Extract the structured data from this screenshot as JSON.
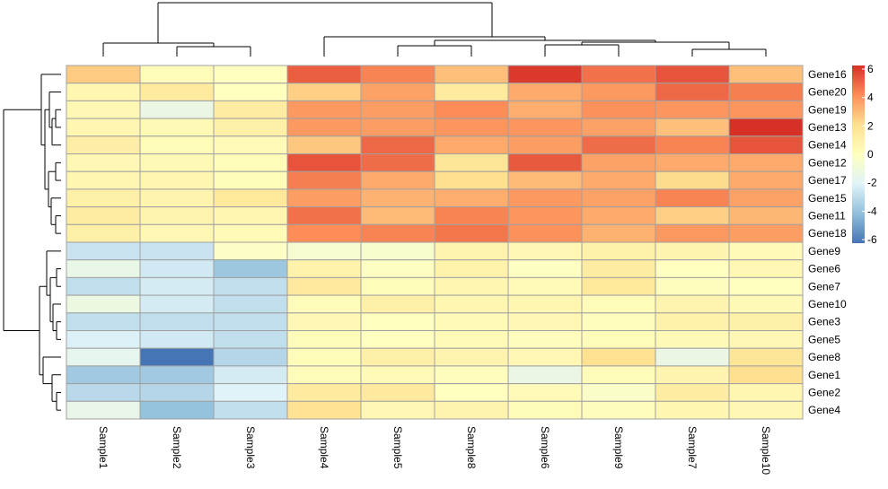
{
  "chart_data": {
    "type": "heatmap",
    "title": "",
    "columns": [
      "Sample1",
      "Sample2",
      "Sample3",
      "Sample4",
      "Sample5",
      "Sample8",
      "Sample6",
      "Sample9",
      "Sample7",
      "Sample10"
    ],
    "rows": [
      "Gene16",
      "Gene20",
      "Gene19",
      "Gene13",
      "Gene14",
      "Gene12",
      "Gene17",
      "Gene15",
      "Gene11",
      "Gene18",
      "Gene9",
      "Gene6",
      "Gene7",
      "Gene10",
      "Gene3",
      "Gene5",
      "Gene8",
      "Gene1",
      "Gene2",
      "Gene4"
    ],
    "values": [
      [
        2.5,
        0.2,
        0.0,
        5.0,
        4.2,
        2.8,
        5.8,
        4.6,
        5.2,
        2.8
      ],
      [
        0.6,
        1.3,
        0.0,
        2.4,
        3.5,
        1.3,
        3.3,
        3.7,
        4.8,
        4.3
      ],
      [
        0.5,
        -1.3,
        1.2,
        3.7,
        3.6,
        4.0,
        3.2,
        3.9,
        3.8,
        3.8
      ],
      [
        0.6,
        0.4,
        1.0,
        3.7,
        3.6,
        3.8,
        3.8,
        3.5,
        2.8,
        6.0
      ],
      [
        1.1,
        0.2,
        0.3,
        2.6,
        4.8,
        3.3,
        3.6,
        4.7,
        4.2,
        5.2
      ],
      [
        0.5,
        0.4,
        0.2,
        5.2,
        4.7,
        1.6,
        5.1,
        3.5,
        3.3,
        3.3
      ],
      [
        0.6,
        0.6,
        0.2,
        4.3,
        3.3,
        2.0,
        2.9,
        3.3,
        2.1,
        3.3
      ],
      [
        1.0,
        0.7,
        1.5,
        3.6,
        3.1,
        3.2,
        3.7,
        3.5,
        4.2,
        3.5
      ],
      [
        1.2,
        0.7,
        0.6,
        4.6,
        2.9,
        4.2,
        3.8,
        3.3,
        2.4,
        3.0
      ],
      [
        1.0,
        0.5,
        0.3,
        4.0,
        4.2,
        4.5,
        3.9,
        3.1,
        3.7,
        3.6
      ],
      [
        -2.6,
        -2.6,
        -0.2,
        -0.6,
        -0.5,
        0.7,
        0.5,
        0.9,
        0.7,
        0.3
      ],
      [
        -1.4,
        -2.4,
        -3.7,
        0.8,
        -0.1,
        0.8,
        -0.1,
        1.2,
        0.0,
        0.5
      ],
      [
        -2.8,
        -2.3,
        -2.8,
        1.4,
        0.2,
        0.6,
        0.3,
        1.5,
        0.1,
        0.0
      ],
      [
        -1.2,
        -2.3,
        -2.8,
        0.2,
        1.0,
        0.6,
        0.6,
        0.2,
        0.7,
        0.4
      ],
      [
        -2.8,
        -2.8,
        -2.8,
        0.5,
        0.0,
        0.3,
        0.5,
        0.1,
        0.9,
        1.0
      ],
      [
        -2.1,
        -2.4,
        -2.8,
        0.2,
        0.0,
        0.3,
        0.1,
        0.2,
        0.4,
        0.5
      ],
      [
        -1.6,
        -6.0,
        -3.1,
        0.2,
        1.0,
        0.7,
        0.5,
        1.9,
        -1.3,
        1.6
      ],
      [
        -3.6,
        -3.6,
        -2.3,
        0.2,
        0.3,
        0.1,
        -1.3,
        0.2,
        0.7,
        2.0
      ],
      [
        -3.0,
        -3.1,
        -2.0,
        1.3,
        1.4,
        0.0,
        0.3,
        -0.3,
        1.2,
        0.6
      ],
      [
        -1.5,
        -3.9,
        -2.8,
        1.8,
        0.5,
        0.7,
        0.2,
        0.1,
        0.6,
        0.5
      ]
    ],
    "color_scale": {
      "min": -6,
      "max": 6,
      "ticks": [
        "-6",
        "-4",
        "-2",
        "0",
        "2",
        "4",
        "6"
      ],
      "colors": [
        "#4575B4",
        "#91BFDB",
        "#E0F3F8",
        "#FFFFBF",
        "#FEE090",
        "#FC8D59",
        "#D73027"
      ]
    },
    "cell_border_color": "#A0A0A0",
    "row_dendrogram": "left",
    "column_dendrogram": "top",
    "legend_position": "right"
  }
}
